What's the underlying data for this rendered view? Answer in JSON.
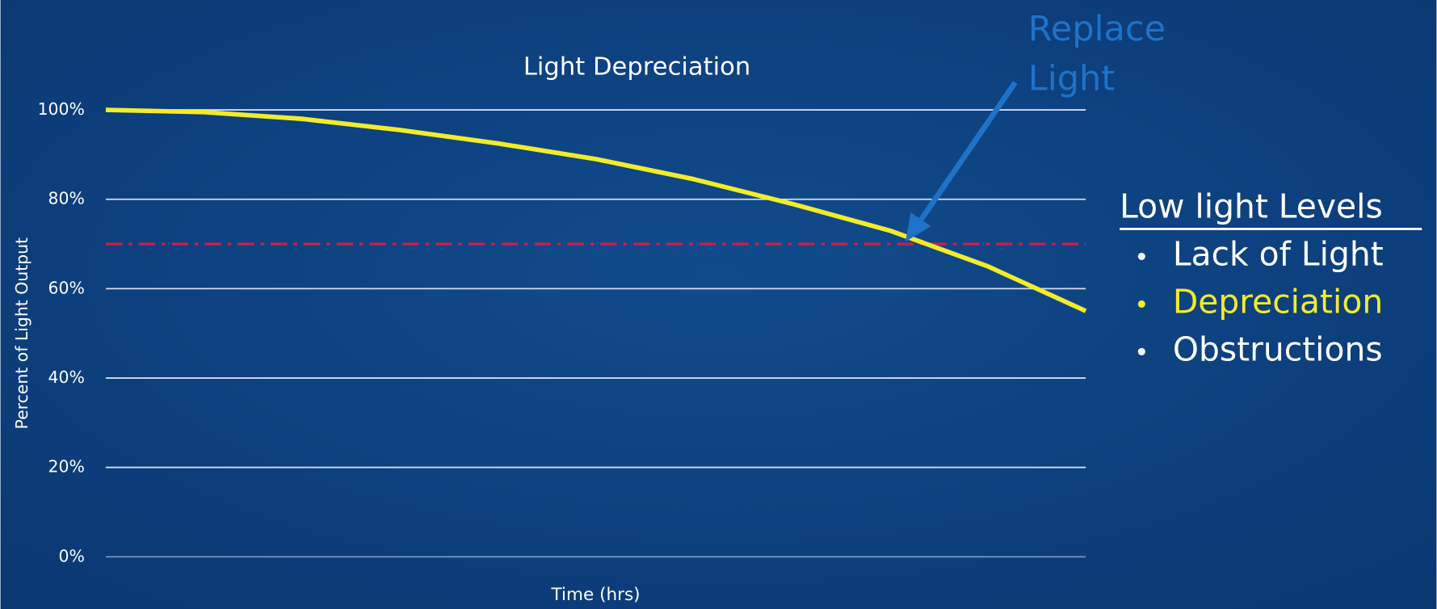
{
  "chart_data": {
    "type": "line",
    "title": "Light Depreciation",
    "x_label": "Time (hrs)",
    "y_label": "Percent of Light Output",
    "categories": [
      null,
      null,
      null,
      null,
      null,
      null,
      null,
      null,
      null,
      null,
      null
    ],
    "series": [
      {
        "name": "Depreciation",
        "color": "#f2ec2a",
        "values": [
          100,
          99.5,
          98,
          95.5,
          92.5,
          89,
          84.5,
          79,
          73,
          65,
          55
        ]
      }
    ],
    "ylim": [
      0,
      100
    ],
    "yticks": [
      {
        "value": 0,
        "label": "0%"
      },
      {
        "value": 20,
        "label": "20%"
      },
      {
        "value": 40,
        "label": "40%"
      },
      {
        "value": 60,
        "label": "60%"
      },
      {
        "value": 80,
        "label": "80%"
      },
      {
        "value": 100,
        "label": "100%"
      }
    ],
    "grid": true,
    "threshold": {
      "value": 70,
      "color": "#c8204a"
    },
    "annotation": {
      "lines": [
        "Replace",
        "Light"
      ],
      "color": "#1f72c8"
    },
    "side_panel": {
      "heading": "Low light Levels",
      "items": [
        {
          "text": "Lack of Light",
          "color": "#ffffff"
        },
        {
          "text": "Depreciation",
          "color": "#f2ec2a"
        },
        {
          "text": "Obstructions",
          "color": "#ffffff"
        }
      ]
    }
  }
}
